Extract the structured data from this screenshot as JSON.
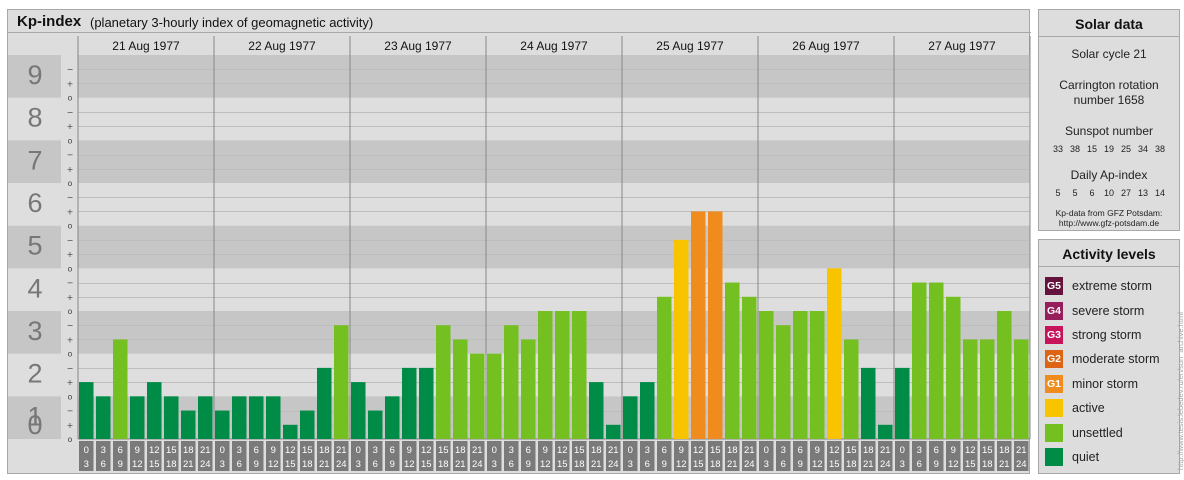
{
  "header": {
    "title": "Kp-index",
    "subtitle": "(planetary 3-hourly index of geomagnetic activity)"
  },
  "chart_data": {
    "type": "bar",
    "days": [
      "21 Aug 1977",
      "22 Aug 1977",
      "23 Aug 1977",
      "24 Aug 1977",
      "25 Aug 1977",
      "26 Aug 1977",
      "27 Aug 1977"
    ],
    "interval_labels": [
      [
        "0",
        "3"
      ],
      [
        "3",
        "6"
      ],
      [
        "6",
        "9"
      ],
      [
        "9",
        "12"
      ],
      [
        "12",
        "15"
      ],
      [
        "15",
        "18"
      ],
      [
        "18",
        "21"
      ],
      [
        "21",
        "24"
      ]
    ],
    "kp_values": [
      [
        1.333,
        1.0,
        2.333,
        1.0,
        1.333,
        1.0,
        0.667,
        1.0
      ],
      [
        0.667,
        1.0,
        1.0,
        1.0,
        0.333,
        0.667,
        1.667,
        2.667
      ],
      [
        1.333,
        0.667,
        1.0,
        1.667,
        1.667,
        2.667,
        2.333,
        2.0
      ],
      [
        2.0,
        2.667,
        2.333,
        3.0,
        3.0,
        3.0,
        1.333,
        0.333
      ],
      [
        1.0,
        1.333,
        3.333,
        4.667,
        5.333,
        5.333,
        3.667,
        3.333
      ],
      [
        3.0,
        2.667,
        3.0,
        3.0,
        4.0,
        2.333,
        1.667,
        0.333
      ],
      [
        1.667,
        3.667,
        3.667,
        3.333,
        2.333,
        2.333,
        3.0,
        2.333
      ]
    ],
    "y_range": [
      0,
      9
    ],
    "y_ticks": [
      "0",
      "1",
      "2",
      "3",
      "4",
      "5",
      "6",
      "7",
      "8",
      "9"
    ],
    "sub_ticks": [
      "+",
      "o",
      "−"
    ],
    "level_colors": {
      "quiet": "#008c46",
      "unsettled": "#73c020",
      "active": "#f8c400",
      "minor_storm": "#f08c1e",
      "moderate_storm": "#dc6414",
      "strong_storm": "#c8145a",
      "severe_storm": "#961e5a",
      "extreme_storm": "#64143c"
    },
    "band_colors": [
      "#c6c6c6",
      "#dedede"
    ],
    "axis_label_color": "#777777"
  },
  "solar_data": {
    "title": "Solar data",
    "cycle": "Solar cycle 21",
    "carrington_line1": "Carrington rotation",
    "carrington_line2": "number 1658",
    "sunspot_label": "Sunspot number",
    "sunspot_values": [
      "33",
      "38",
      "15",
      "19",
      "25",
      "34",
      "38"
    ],
    "ap_label": "Daily Ap-index",
    "ap_values": [
      "5",
      "5",
      "6",
      "10",
      "27",
      "13",
      "14"
    ],
    "credit_line1": "Kp-data from GFZ Potsdam:",
    "credit_line2": "http://www.gfz-potsdam.de"
  },
  "activity_levels": {
    "title": "Activity levels",
    "items": [
      {
        "code": "G5",
        "label": "extreme storm",
        "color": "#64143c"
      },
      {
        "code": "G4",
        "label": "severe storm",
        "color": "#961e5a"
      },
      {
        "code": "G3",
        "label": "strong storm",
        "color": "#c8145a"
      },
      {
        "code": "G2",
        "label": "moderate storm",
        "color": "#dc6414"
      },
      {
        "code": "G1",
        "label": "minor storm",
        "color": "#f08c1e"
      },
      {
        "code": "",
        "label": "active",
        "color": "#f8c400"
      },
      {
        "code": "",
        "label": "unsettled",
        "color": "#73c020"
      },
      {
        "code": "",
        "label": "quiet",
        "color": "#008c46"
      }
    ]
  },
  "watermark": "http://www.tesis.lebedev.ru/en/sun_archive.html"
}
